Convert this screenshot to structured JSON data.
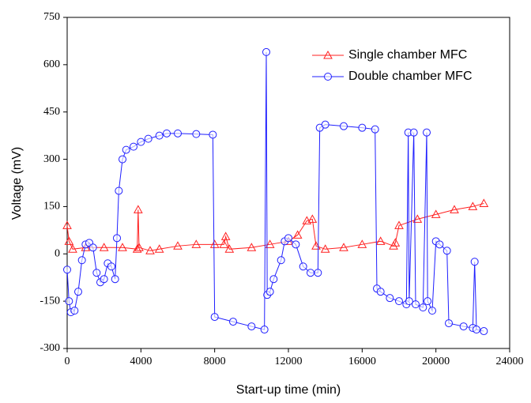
{
  "chart_data": {
    "type": "line",
    "x_label": "Start-up time (min)",
    "y_label": "Voltage (mV)",
    "xlim": [
      0,
      24000
    ],
    "xticks": [
      0,
      4000,
      8000,
      12000,
      16000,
      20000,
      24000
    ],
    "ylim": [
      -300,
      750
    ],
    "yticks": [
      -300,
      -150,
      0,
      150,
      300,
      450,
      600,
      750
    ],
    "legend": "upper right",
    "series": [
      {
        "name": "Single chamber MFC",
        "color": "#ff2020",
        "marker": "triangle",
        "x": [
          0,
          100,
          300,
          1000,
          2000,
          3000,
          3800,
          3850,
          3900,
          4500,
          5000,
          6000,
          7000,
          8000,
          8500,
          8600,
          8800,
          10000,
          11000,
          12000,
          12500,
          13000,
          13300,
          13500,
          14000,
          15000,
          16000,
          17000,
          17700,
          17800,
          18000,
          19000,
          20000,
          21000,
          22000,
          22600
        ],
        "values": [
          90,
          40,
          15,
          20,
          20,
          20,
          15,
          140,
          20,
          10,
          15,
          25,
          30,
          30,
          30,
          55,
          15,
          20,
          30,
          40,
          60,
          105,
          110,
          25,
          15,
          20,
          30,
          40,
          25,
          35,
          90,
          110,
          125,
          140,
          150,
          160
        ]
      },
      {
        "name": "Double chamber MFC",
        "color": "#1f1fff",
        "marker": "circle",
        "x": [
          0,
          100,
          200,
          400,
          600,
          800,
          1000,
          1200,
          1400,
          1600,
          1800,
          2000,
          2200,
          2400,
          2600,
          2700,
          2800,
          3000,
          3200,
          3600,
          4000,
          4400,
          5000,
          5400,
          6000,
          7000,
          7900,
          8000,
          9000,
          10000,
          10700,
          10800,
          10850,
          11000,
          11200,
          11600,
          11800,
          12000,
          12400,
          12800,
          13200,
          13600,
          13700,
          14000,
          15000,
          16000,
          16700,
          16800,
          17000,
          17500,
          18000,
          18400,
          18500,
          18550,
          18800,
          18900,
          19300,
          19500,
          19550,
          19800,
          20000,
          20200,
          20600,
          20700,
          21500,
          22000,
          22100,
          22200,
          22600
        ],
        "values": [
          -50,
          -150,
          -185,
          -180,
          -120,
          -20,
          30,
          35,
          20,
          -60,
          -90,
          -80,
          -30,
          -40,
          -80,
          50,
          200,
          300,
          330,
          340,
          355,
          365,
          375,
          382,
          382,
          380,
          378,
          -200,
          -215,
          -230,
          -240,
          640,
          -130,
          -120,
          -80,
          -20,
          40,
          50,
          30,
          -40,
          -60,
          -60,
          400,
          410,
          405,
          400,
          395,
          -110,
          -120,
          -140,
          -150,
          -160,
          385,
          -150,
          385,
          -160,
          -170,
          385,
          -150,
          -180,
          40,
          30,
          10,
          -220,
          -230,
          -235,
          -25,
          -240,
          -245
        ]
      }
    ]
  }
}
